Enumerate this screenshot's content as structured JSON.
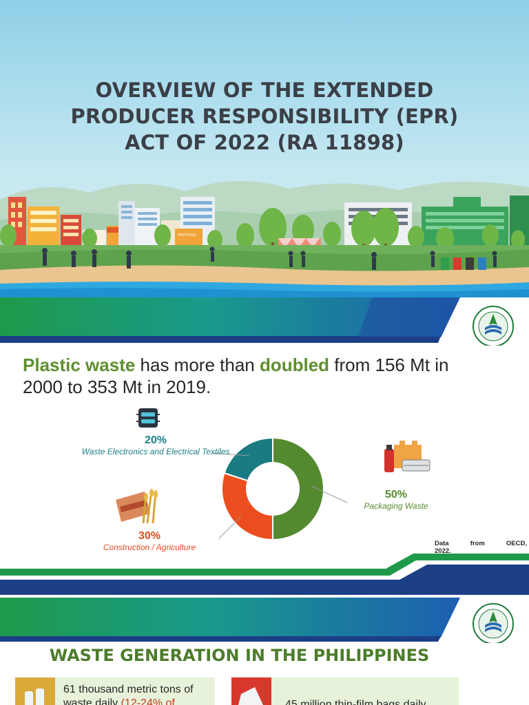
{
  "slide1": {
    "title_lines": [
      "OVERVIEW OF THE EXTENDED",
      "PRODUCER RESPONSIBILITY (EPR)",
      "ACT OF 2022 (RA 11898)"
    ],
    "shop_sign": "FASTFOOD"
  },
  "slide2": {
    "headline": {
      "part1": "Plastic waste",
      "part2": " has more than ",
      "part3": "doubled",
      "part4": " from 156 Mt in 2000 to 353 Mt in 2019."
    },
    "categories": [
      {
        "pct": "20%",
        "label": "Waste Electronics and Electrical Textiles",
        "color": "#1b7f86",
        "icon": "electronics-chip-icon"
      },
      {
        "pct": "50%",
        "label": "Packaging Waste",
        "color": "#5a8a30",
        "icon": "packaging-icon"
      },
      {
        "pct": "30%",
        "label": "Construction / Agriculture",
        "color": "#e04a1f",
        "icon": "cement-wheat-icon"
      }
    ],
    "source": {
      "w1": "Data",
      "w2": "from",
      "w3": "OECD,",
      "line2": "2022."
    },
    "colors": {
      "green_text": "#5e8f2e",
      "teal": "#1b7f86",
      "orange": "#e04a1f",
      "stripe_green": "#1e9a4a",
      "stripe_blue": "#1c3f86"
    }
  },
  "chart_data": {
    "type": "pie",
    "categories": [
      "Packaging Waste",
      "Construction / Agriculture",
      "Waste Electronics and Electrical Textiles"
    ],
    "values": [
      50,
      30,
      20
    ],
    "colors": [
      "#548a2f",
      "#ec4d1e",
      "#1a7b82"
    ]
  },
  "slide3": {
    "title": "WASTE GENERATION IN THE PHILIPPINES",
    "card1": {
      "text": "61 thousand metric tons of",
      "text2": "waste daily ",
      "highlight": "(12-24% of"
    },
    "card2": {
      "text": "45 million thin-film bags daily"
    }
  }
}
